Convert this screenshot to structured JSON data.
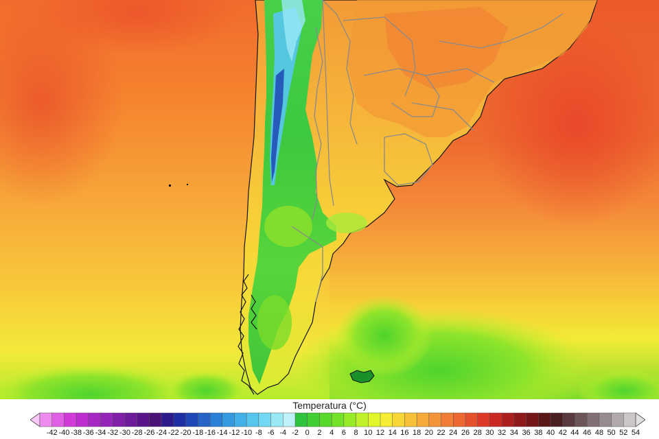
{
  "legend": {
    "title": "Temperatura (°C)",
    "ticks": [
      -42,
      -40,
      -38,
      -36,
      -34,
      -32,
      -30,
      -28,
      -26,
      -24,
      -22,
      -20,
      -18,
      -16,
      -14,
      -12,
      -10,
      -8,
      -6,
      -4,
      -2,
      0,
      2,
      4,
      6,
      8,
      10,
      12,
      14,
      16,
      18,
      20,
      22,
      24,
      26,
      28,
      30,
      32,
      34,
      36,
      38,
      40,
      42,
      44,
      46,
      48,
      50,
      52,
      54
    ],
    "colors": [
      "#f7c7f5",
      "#ef8bef",
      "#e060e4",
      "#cf3ad8",
      "#bd2ccf",
      "#a727c2",
      "#9325b8",
      "#8020a8",
      "#6d1b98",
      "#5a1688",
      "#4b1278",
      "#2b1a8c",
      "#1d2fa3",
      "#1f47b5",
      "#2563c7",
      "#2c7fd6",
      "#3599e0",
      "#41b1e8",
      "#57c6ef",
      "#73d8f3",
      "#9ae7f6",
      "#bff2f8",
      "#2fc23d",
      "#3fcd33",
      "#57d82b",
      "#74e228",
      "#97ea26",
      "#bff129",
      "#e2f52d",
      "#f5ec33",
      "#f6d736",
      "#f7c139",
      "#f6aa3a",
      "#f4943a",
      "#f17e37",
      "#ec6732",
      "#e5502d",
      "#dc3a28",
      "#c92922",
      "#ad1f1f",
      "#8f1a1c",
      "#74171a",
      "#5c1618",
      "#4a1f22",
      "#5a3a3e",
      "#6b5558",
      "#807073",
      "#968b8d",
      "#b0a8aa",
      "#cbc6c8",
      "#e3e0e1"
    ]
  },
  "map": {
    "description_colors": {
      "ocean_warm": "#f26a2c",
      "ocean_mid": "#f7a63a",
      "ocean_cool": "#f8dc35",
      "ocean_cold": "#8fe02c",
      "andes_cold": "#3ecb3d",
      "andes_frozen": "#2c7fd6",
      "border": "#8a8a8a",
      "coast": "#111111"
    }
  }
}
